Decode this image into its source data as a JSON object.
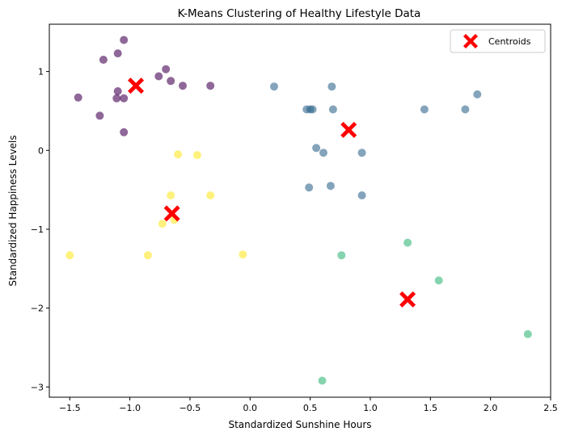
{
  "chart_data": {
    "type": "scatter",
    "title": "K-Means Clustering of Healthy Lifestyle Data",
    "xlabel": "Standardized Sunshine Hours",
    "ylabel": "Standardized Happiness Levels",
    "xlim": [
      -1.67,
      2.5
    ],
    "ylim": [
      -3.13,
      1.6
    ],
    "xticks": [
      -1.5,
      -1.0,
      -0.5,
      0.0,
      0.5,
      1.0,
      1.5,
      2.0,
      2.5
    ],
    "xtick_labels": [
      "−1.5",
      "−1.0",
      "−0.5",
      "0.0",
      "0.5",
      "1.0",
      "1.5",
      "2.0",
      "2.5"
    ],
    "yticks": [
      -3,
      -2,
      -1,
      0,
      1
    ],
    "ytick_labels": [
      "−3",
      "−2",
      "−1",
      "0",
      "1"
    ],
    "grid": false,
    "legend_position": "top-right",
    "series": [
      {
        "color": "#440154",
        "points": [
          [
            -1.05,
            1.4
          ],
          [
            -1.1,
            1.23
          ],
          [
            -1.22,
            1.15
          ],
          [
            -0.7,
            1.03
          ],
          [
            -0.76,
            0.94
          ],
          [
            -0.66,
            0.88
          ],
          [
            -0.56,
            0.82
          ],
          [
            -0.33,
            0.82
          ],
          [
            -1.1,
            0.75
          ],
          [
            -1.43,
            0.67
          ],
          [
            -1.11,
            0.66
          ],
          [
            -1.05,
            0.66
          ],
          [
            -1.25,
            0.44
          ],
          [
            -1.05,
            0.23
          ]
        ]
      },
      {
        "color": "#31688e",
        "points": [
          [
            0.2,
            0.81
          ],
          [
            0.68,
            0.81
          ],
          [
            1.89,
            0.71
          ],
          [
            0.47,
            0.52
          ],
          [
            0.5,
            0.52
          ],
          [
            0.52,
            0.52
          ],
          [
            0.69,
            0.52
          ],
          [
            1.45,
            0.52
          ],
          [
            1.79,
            0.52
          ],
          [
            0.55,
            0.03
          ],
          [
            0.61,
            -0.03
          ],
          [
            0.93,
            -0.03
          ],
          [
            0.49,
            -0.47
          ],
          [
            0.67,
            -0.45
          ],
          [
            0.93,
            -0.57
          ]
        ]
      },
      {
        "color": "#35b779",
        "points": [
          [
            1.31,
            -1.17
          ],
          [
            0.76,
            -1.33
          ],
          [
            1.57,
            -1.65
          ],
          [
            2.31,
            -2.33
          ],
          [
            0.6,
            -2.92
          ]
        ]
      },
      {
        "color": "#fde725",
        "points": [
          [
            -0.6,
            -0.05
          ],
          [
            -0.44,
            -0.06
          ],
          [
            -0.66,
            -0.57
          ],
          [
            -0.33,
            -0.57
          ],
          [
            -0.63,
            -0.88
          ],
          [
            -0.73,
            -0.93
          ],
          [
            -1.5,
            -1.33
          ],
          [
            -0.85,
            -1.33
          ],
          [
            -0.06,
            -1.32
          ]
        ]
      }
    ],
    "centroids": {
      "name": "Centroids",
      "color": "#ff0000",
      "points": [
        [
          -0.95,
          0.82
        ],
        [
          0.82,
          0.26
        ],
        [
          -0.65,
          -0.8
        ],
        [
          1.31,
          -1.89
        ]
      ]
    }
  }
}
